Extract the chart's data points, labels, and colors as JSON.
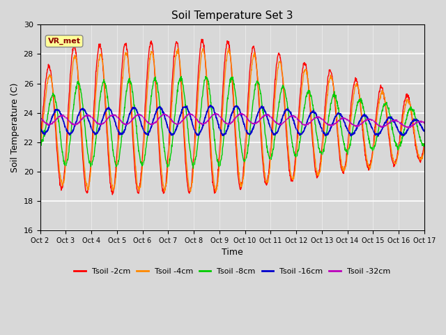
{
  "title": "Soil Temperature Set 3",
  "xlabel": "Time",
  "ylabel": "Soil Temperature (C)",
  "ylim": [
    16,
    30
  ],
  "background_color": "#d8d8d8",
  "annotation_text": "VR_met",
  "annotation_color": "#8B0000",
  "annotation_bg": "#ffff99",
  "x_tick_labels": [
    "Oct 2",
    "Oct 3",
    "Oct 4",
    "Oct 5",
    "Oct 6",
    "Oct 7",
    "Oct 8",
    "Oct 9",
    "Oct 10",
    "Oct 11",
    "Oct 12",
    "Oct 13",
    "Oct 14",
    "Oct 15",
    "Oct 16",
    "Oct 17"
  ],
  "series_colors": [
    "#ff0000",
    "#ff8800",
    "#00cc00",
    "#0000cc",
    "#bb00bb"
  ],
  "series_labels": [
    "Tsoil -2cm",
    "Tsoil -4cm",
    "Tsoil -8cm",
    "Tsoil -16cm",
    "Tsoil -32cm"
  ],
  "num_days": 15,
  "points_per_day": 96
}
